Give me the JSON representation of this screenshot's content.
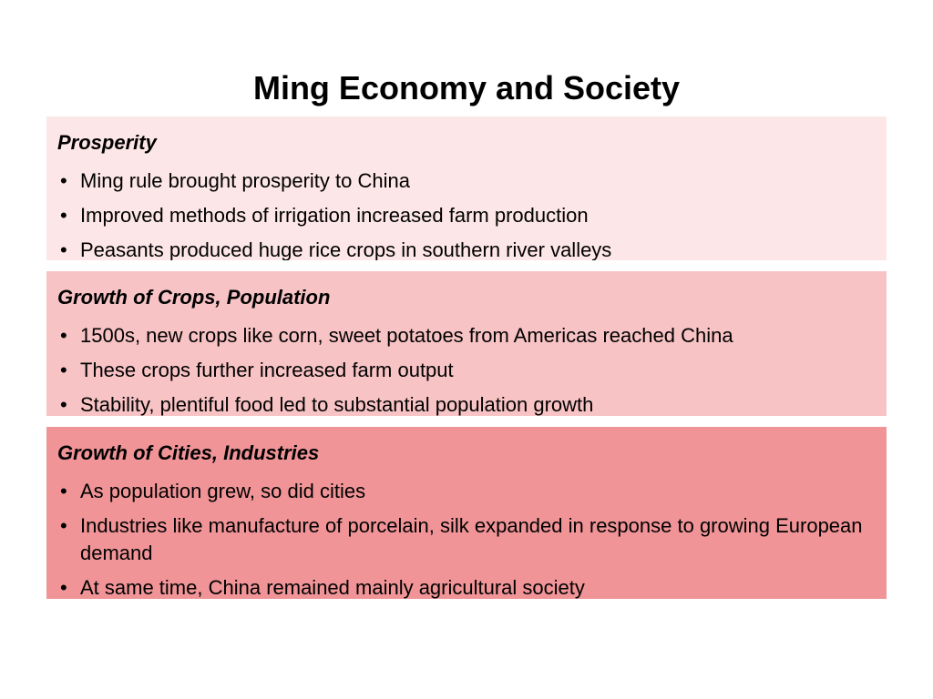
{
  "title": "Ming Economy and Society",
  "sections": [
    {
      "heading": "Prosperity",
      "items": [
        "Ming rule brought prosperity to China",
        "Improved methods of irrigation increased farm production",
        "Peasants produced huge rice crops in southern river valleys"
      ]
    },
    {
      "heading": "Growth of Crops, Population",
      "items": [
        "1500s, new crops like corn, sweet potatoes from Americas reached China",
        "These crops further increased farm output",
        "Stability, plentiful food led to substantial population growth"
      ]
    },
    {
      "heading": "Growth of Cities, Industries",
      "items": [
        "As population grew, so did cities",
        "Industries like manufacture of porcelain, silk expanded in response to growing European demand",
        "At same time, China remained mainly agricultural society"
      ]
    }
  ]
}
